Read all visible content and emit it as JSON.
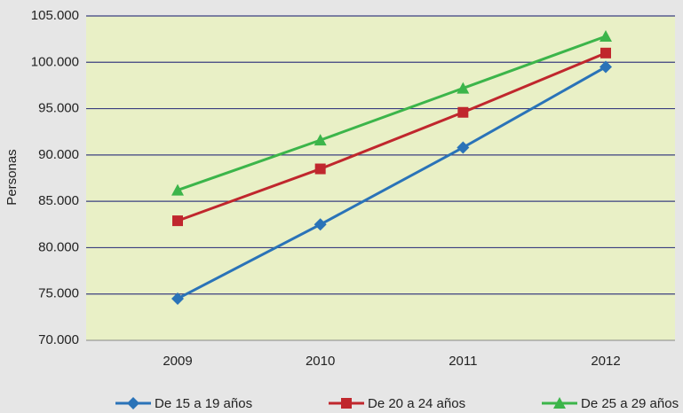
{
  "chart_data": {
    "type": "line",
    "y_label": "Personas",
    "categories": [
      "2009",
      "2010",
      "2011",
      "2012"
    ],
    "series": [
      {
        "name": "De 15 a 19 años",
        "color": "#2a73b8",
        "marker": "diamond",
        "values": [
          74500,
          82500,
          90800,
          99500
        ]
      },
      {
        "name": "De 20 a 24 años",
        "color": "#c0272d",
        "marker": "square",
        "values": [
          82900,
          88500,
          94600,
          101000
        ]
      },
      {
        "name": "De 25 a 29 años",
        "color": "#3cb54a",
        "marker": "triangle",
        "values": [
          86200,
          91600,
          97200,
          102800
        ]
      }
    ],
    "ylim": [
      70000,
      105000
    ],
    "yticks": [
      {
        "value": 70000,
        "label": "70.000"
      },
      {
        "value": 75000,
        "label": "75.000"
      },
      {
        "value": 80000,
        "label": "80.000"
      },
      {
        "value": 85000,
        "label": "85.000"
      },
      {
        "value": 90000,
        "label": "90.000"
      },
      {
        "value": 95000,
        "label": "95.000"
      },
      {
        "value": 100000,
        "label": "100.000"
      },
      {
        "value": 105000,
        "label": "105.000"
      }
    ],
    "grid": true
  }
}
